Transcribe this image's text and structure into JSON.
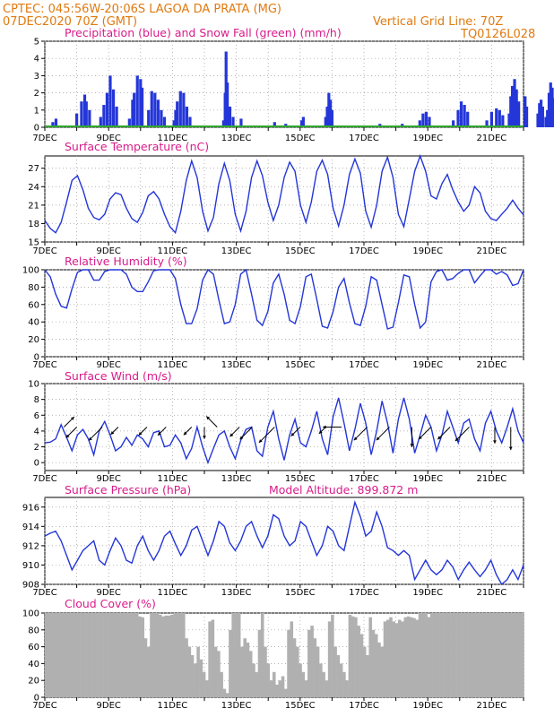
{
  "header": {
    "line1": "CPTEC:   045:56W-20:06S  LAGOA DA PRATA (MG)",
    "line2": "07DEC2020 70Z (GMT)",
    "grid_note": "Vertical Grid Line: 70Z",
    "code": "TQ0126L028"
  },
  "colors": {
    "header": "#e07a10",
    "title": "#d81b8a",
    "series": "#2436d8",
    "snow": "#2ea82e",
    "cloud": "#b0b0b0",
    "wind": "#000000"
  },
  "x_ticks": [
    "7DEC",
    "9DEC",
    "11DEC",
    "13DEC",
    "15DEC",
    "17DEC",
    "19DEC",
    "21DEC"
  ],
  "chart_data": [
    {
      "type": "bar",
      "title": "Precipitation (blue) and Snow Fall (green) (mm/h)",
      "ylim": [
        0,
        5
      ],
      "yticks": [
        "0",
        "1",
        "2",
        "3",
        "4",
        "5"
      ],
      "series": [],
      "events": [
        {
          "day": 0.25,
          "v": 0.3
        },
        {
          "day": 0.35,
          "v": 0.5
        },
        {
          "day": 1.0,
          "v": 0.8
        },
        {
          "day": 1.15,
          "v": 1.5
        },
        {
          "day": 1.25,
          "v": 1.9
        },
        {
          "day": 1.3,
          "v": 1.5
        },
        {
          "day": 1.4,
          "v": 1.0
        },
        {
          "day": 1.75,
          "v": 0.6
        },
        {
          "day": 1.85,
          "v": 1.3
        },
        {
          "day": 1.95,
          "v": 2.0
        },
        {
          "day": 2.05,
          "v": 3.0
        },
        {
          "day": 2.15,
          "v": 2.2
        },
        {
          "day": 2.25,
          "v": 1.2
        },
        {
          "day": 2.65,
          "v": 0.5
        },
        {
          "day": 2.75,
          "v": 1.6
        },
        {
          "day": 2.8,
          "v": 2.0
        },
        {
          "day": 2.9,
          "v": 3.0
        },
        {
          "day": 3.0,
          "v": 2.8
        },
        {
          "day": 3.05,
          "v": 2.3
        },
        {
          "day": 3.25,
          "v": 1.0
        },
        {
          "day": 3.35,
          "v": 2.1
        },
        {
          "day": 3.45,
          "v": 2.0
        },
        {
          "day": 3.55,
          "v": 1.6
        },
        {
          "day": 3.65,
          "v": 1.0
        },
        {
          "day": 3.75,
          "v": 0.6
        },
        {
          "day": 4.05,
          "v": 0.4
        },
        {
          "day": 4.1,
          "v": 1.0
        },
        {
          "day": 4.15,
          "v": 1.5
        },
        {
          "day": 4.25,
          "v": 2.1
        },
        {
          "day": 4.35,
          "v": 2.0
        },
        {
          "day": 4.45,
          "v": 1.2
        },
        {
          "day": 4.55,
          "v": 0.6
        },
        {
          "day": 5.6,
          "v": 0.4
        },
        {
          "day": 5.65,
          "v": 2.0
        },
        {
          "day": 5.68,
          "v": 4.4
        },
        {
          "day": 5.72,
          "v": 2.6
        },
        {
          "day": 5.8,
          "v": 1.2
        },
        {
          "day": 5.9,
          "v": 0.6
        },
        {
          "day": 6.15,
          "v": 0.5
        },
        {
          "day": 7.2,
          "v": 0.3
        },
        {
          "day": 7.55,
          "v": 0.2
        },
        {
          "day": 8.05,
          "v": 0.4
        },
        {
          "day": 8.1,
          "v": 0.6
        },
        {
          "day": 8.8,
          "v": 0.6
        },
        {
          "day": 8.85,
          "v": 1.2
        },
        {
          "day": 8.9,
          "v": 2.0
        },
        {
          "day": 8.95,
          "v": 1.6
        },
        {
          "day": 9.0,
          "v": 1.0
        },
        {
          "day": 10.5,
          "v": 0.2
        },
        {
          "day": 11.2,
          "v": 0.2
        },
        {
          "day": 11.75,
          "v": 0.4
        },
        {
          "day": 11.85,
          "v": 0.8
        },
        {
          "day": 11.95,
          "v": 0.9
        },
        {
          "day": 12.05,
          "v": 0.6
        },
        {
          "day": 12.8,
          "v": 0.4
        },
        {
          "day": 12.95,
          "v": 1.0
        },
        {
          "day": 13.05,
          "v": 1.5
        },
        {
          "day": 13.15,
          "v": 1.3
        },
        {
          "day": 13.25,
          "v": 0.9
        },
        {
          "day": 13.85,
          "v": 0.4
        },
        {
          "day": 14.0,
          "v": 0.9
        },
        {
          "day": 14.15,
          "v": 1.1
        },
        {
          "day": 14.25,
          "v": 1.0
        },
        {
          "day": 14.35,
          "v": 0.7
        },
        {
          "day": 14.55,
          "v": 0.8
        },
        {
          "day": 14.6,
          "v": 1.8
        },
        {
          "day": 14.65,
          "v": 2.4
        },
        {
          "day": 14.72,
          "v": 2.8
        },
        {
          "day": 14.78,
          "v": 2.2
        },
        {
          "day": 14.85,
          "v": 1.5
        },
        {
          "day": 15.05,
          "v": 1.8
        },
        {
          "day": 15.1,
          "v": 1.2
        },
        {
          "day": 15.45,
          "v": 0.8
        },
        {
          "day": 15.5,
          "v": 1.4
        },
        {
          "day": 15.55,
          "v": 1.6
        },
        {
          "day": 15.6,
          "v": 1.2
        },
        {
          "day": 15.7,
          "v": 0.6
        },
        {
          "day": 15.75,
          "v": 1.0
        },
        {
          "day": 15.8,
          "v": 2.0
        },
        {
          "day": 15.85,
          "v": 2.6
        },
        {
          "day": 15.9,
          "v": 2.3
        },
        {
          "day": 15.95,
          "v": 1.7
        },
        {
          "day": 16.0,
          "v": 0.9
        }
      ],
      "snow_line": 0
    },
    {
      "type": "line",
      "title": "Surface Temperature (nC)",
      "ylim": [
        15,
        29
      ],
      "yticks": [
        "15",
        "18",
        "21",
        "24",
        "27"
      ],
      "series": [
        {
          "values": [
            18.5,
            17.2,
            16.5,
            18.2,
            21.5,
            25.0,
            25.8,
            23.5,
            20.5,
            19.0,
            18.6,
            19.5,
            22.0,
            23.0,
            22.7,
            20.5,
            18.8,
            18.2,
            19.8,
            22.5,
            23.2,
            22.0,
            19.5,
            17.5,
            16.5,
            20.0,
            25.0,
            28.2,
            25.5,
            20.0,
            16.8,
            19.0,
            24.5,
            27.8,
            25.0,
            19.5,
            16.8,
            20.0,
            25.5,
            28.2,
            25.8,
            21.5,
            18.5,
            21.0,
            25.5,
            28.0,
            26.5,
            21.0,
            18.2,
            21.5,
            26.5,
            28.3,
            26.0,
            20.5,
            17.6,
            21.0,
            26.0,
            28.5,
            26.2,
            20.0,
            17.4,
            21.0,
            26.5,
            28.8,
            25.5,
            19.5,
            17.5,
            22.0,
            26.5,
            29.0,
            26.5,
            22.5,
            22.0,
            24.5,
            26.0,
            23.5,
            21.5,
            20.0,
            21.0,
            24.0,
            23.0,
            20.0,
            18.8,
            18.5,
            19.5,
            20.5,
            21.8,
            20.5,
            19.4
          ]
        }
      ]
    },
    {
      "type": "line",
      "title": "Relative Humidity (%)",
      "ylim": [
        0,
        100
      ],
      "yticks": [
        "0",
        "20",
        "40",
        "60",
        "80",
        "100"
      ],
      "series": [
        {
          "values": [
            100,
            92,
            72,
            58,
            56,
            78,
            97,
            100,
            100,
            88,
            88,
            98,
            100,
            100,
            100,
            95,
            80,
            75,
            75,
            86,
            99,
            100,
            100,
            100,
            90,
            60,
            38,
            38,
            55,
            88,
            100,
            95,
            65,
            38,
            40,
            60,
            95,
            100,
            72,
            42,
            36,
            52,
            85,
            95,
            72,
            42,
            38,
            58,
            92,
            95,
            66,
            35,
            33,
            52,
            80,
            90,
            62,
            38,
            36,
            58,
            92,
            88,
            60,
            32,
            34,
            62,
            94,
            92,
            60,
            33,
            40,
            86,
            98,
            100,
            88,
            90,
            96,
            100,
            100,
            85,
            93,
            100,
            100,
            95,
            98,
            94,
            82,
            84,
            100
          ]
        }
      ]
    },
    {
      "type": "line",
      "title": "Surface Wind (m/s)",
      "ylim": [
        -1,
        10
      ],
      "yticks": [
        "0",
        "2",
        "4",
        "6",
        "8",
        "10"
      ],
      "series": [
        {
          "values": [
            2.5,
            2.6,
            3.0,
            4.8,
            3.2,
            1.5,
            3.5,
            4.2,
            3.0,
            1.0,
            4.0,
            5.2,
            3.5,
            1.5,
            2.0,
            3.2,
            2.2,
            3.5,
            3.0,
            2.0,
            3.8,
            4.0,
            2.0,
            2.2,
            3.5,
            2.5,
            0.5,
            1.8,
            4.5,
            2.0,
            0.0,
            1.8,
            3.5,
            4.0,
            2.0,
            0.5,
            2.8,
            4.2,
            4.5,
            1.5,
            0.8,
            4.5,
            6.5,
            3.0,
            0.3,
            3.5,
            5.5,
            2.5,
            2.0,
            4.0,
            6.5,
            3.0,
            1.0,
            5.8,
            8.2,
            5.0,
            1.5,
            4.2,
            7.5,
            5.0,
            1.0,
            4.0,
            7.8,
            5.0,
            1.2,
            5.5,
            8.2,
            5.5,
            1.2,
            3.5,
            6.0,
            4.5,
            1.5,
            3.5,
            6.5,
            4.5,
            2.5,
            5.0,
            5.5,
            3.0,
            1.5,
            5.0,
            6.5,
            4.0,
            2.5,
            4.5,
            6.8,
            4.0,
            2.5
          ]
        }
      ],
      "barbs": [
        {
          "day": 0.6,
          "d": "ne"
        },
        {
          "day": 1.0,
          "d": "sw"
        },
        {
          "day": 1.8,
          "d": "sw"
        },
        {
          "day": 2.3,
          "d": "sw"
        },
        {
          "day": 3.2,
          "d": "sw"
        },
        {
          "day": 3.8,
          "d": "sw"
        },
        {
          "day": 4.6,
          "d": "sw"
        },
        {
          "day": 5.0,
          "d": "s"
        },
        {
          "day": 5.4,
          "d": "nw"
        },
        {
          "day": 6.1,
          "d": "sw"
        },
        {
          "day": 6.5,
          "d": "sw"
        },
        {
          "day": 7.2,
          "d": "sw"
        },
        {
          "day": 8.0,
          "d": "sw"
        },
        {
          "day": 8.8,
          "d": "sw"
        },
        {
          "day": 9.3,
          "d": "w"
        },
        {
          "day": 10.1,
          "d": "sw"
        },
        {
          "day": 10.8,
          "d": "sw"
        },
        {
          "day": 11.5,
          "d": "s"
        },
        {
          "day": 12.1,
          "d": "sw"
        },
        {
          "day": 12.7,
          "d": "sw"
        },
        {
          "day": 13.3,
          "d": "sw"
        },
        {
          "day": 14.1,
          "d": "s"
        },
        {
          "day": 14.6,
          "d": "s"
        }
      ]
    },
    {
      "type": "line",
      "title": "Surface Pressure (hPa)",
      "ylim": [
        908,
        917
      ],
      "yticks": [
        "908",
        "910",
        "912",
        "914",
        "916"
      ],
      "series": [
        {
          "values": [
            913.0,
            913.3,
            913.5,
            912.5,
            911.0,
            909.5,
            910.5,
            911.5,
            912.0,
            912.5,
            910.5,
            910.0,
            911.5,
            912.8,
            912.0,
            910.5,
            910.2,
            912.0,
            913.0,
            911.5,
            910.5,
            911.5,
            913.0,
            913.5,
            912.2,
            911.0,
            912.0,
            913.6,
            914.0,
            912.5,
            911.0,
            912.5,
            914.5,
            914.0,
            912.3,
            911.5,
            912.5,
            914.0,
            914.5,
            913.0,
            911.8,
            913.0,
            915.2,
            914.8,
            913.0,
            912.0,
            912.5,
            914.5,
            914.0,
            912.5,
            911.0,
            912.0,
            914.0,
            913.5,
            912.0,
            911.5,
            914.0,
            916.5,
            915.0,
            913.0,
            913.5,
            915.5,
            914.0,
            911.8,
            911.5,
            911.0,
            911.5,
            911.0,
            908.5,
            909.5,
            910.5,
            909.5,
            909.0,
            909.5,
            910.5,
            909.8,
            908.5,
            909.5,
            910.3,
            909.5,
            908.8,
            909.5,
            910.5,
            909.0,
            908.0,
            908.5,
            909.5,
            908.5,
            910.0
          ]
        }
      ],
      "annotation": "Model Altitude:  899.872  m"
    },
    {
      "type": "area",
      "title": "Cloud Cover (%)",
      "ylim": [
        0,
        100
      ],
      "yticks": [
        "0",
        "20",
        "40",
        "60",
        "80",
        "100"
      ],
      "series": [
        {
          "values": [
            100,
            100,
            100,
            100,
            100,
            100,
            100,
            100,
            100,
            100,
            100,
            100,
            100,
            100,
            100,
            100,
            100,
            100,
            100,
            100,
            100,
            100,
            100,
            100,
            100,
            100,
            100,
            100,
            100,
            100,
            100,
            100,
            96,
            95,
            70,
            60,
            100,
            100,
            100,
            98,
            96,
            97,
            97,
            98,
            100,
            100,
            100,
            100,
            70,
            60,
            50,
            40,
            60,
            45,
            30,
            20,
            90,
            92,
            60,
            55,
            30,
            10,
            5,
            80,
            100,
            100,
            100,
            60,
            70,
            65,
            55,
            40,
            30,
            80,
            100,
            60,
            40,
            20,
            30,
            15,
            20,
            25,
            10,
            80,
            90,
            70,
            60,
            40,
            30,
            20,
            80,
            85,
            70,
            60,
            40,
            30,
            20,
            90,
            98,
            60,
            50,
            40,
            30,
            20,
            98,
            96,
            95,
            85,
            75,
            60,
            50,
            95,
            80,
            75,
            65,
            60,
            90,
            92,
            95,
            90,
            88,
            92,
            90,
            95,
            96,
            95,
            94,
            92,
            100,
            100,
            100,
            95,
            100,
            100,
            100,
            100,
            100,
            100,
            100,
            100,
            100,
            100,
            100,
            100,
            100,
            100,
            100,
            100,
            100,
            100,
            100,
            100,
            100,
            100,
            100,
            100,
            100,
            100,
            100,
            100,
            100,
            100,
            100,
            100
          ]
        }
      ]
    }
  ]
}
